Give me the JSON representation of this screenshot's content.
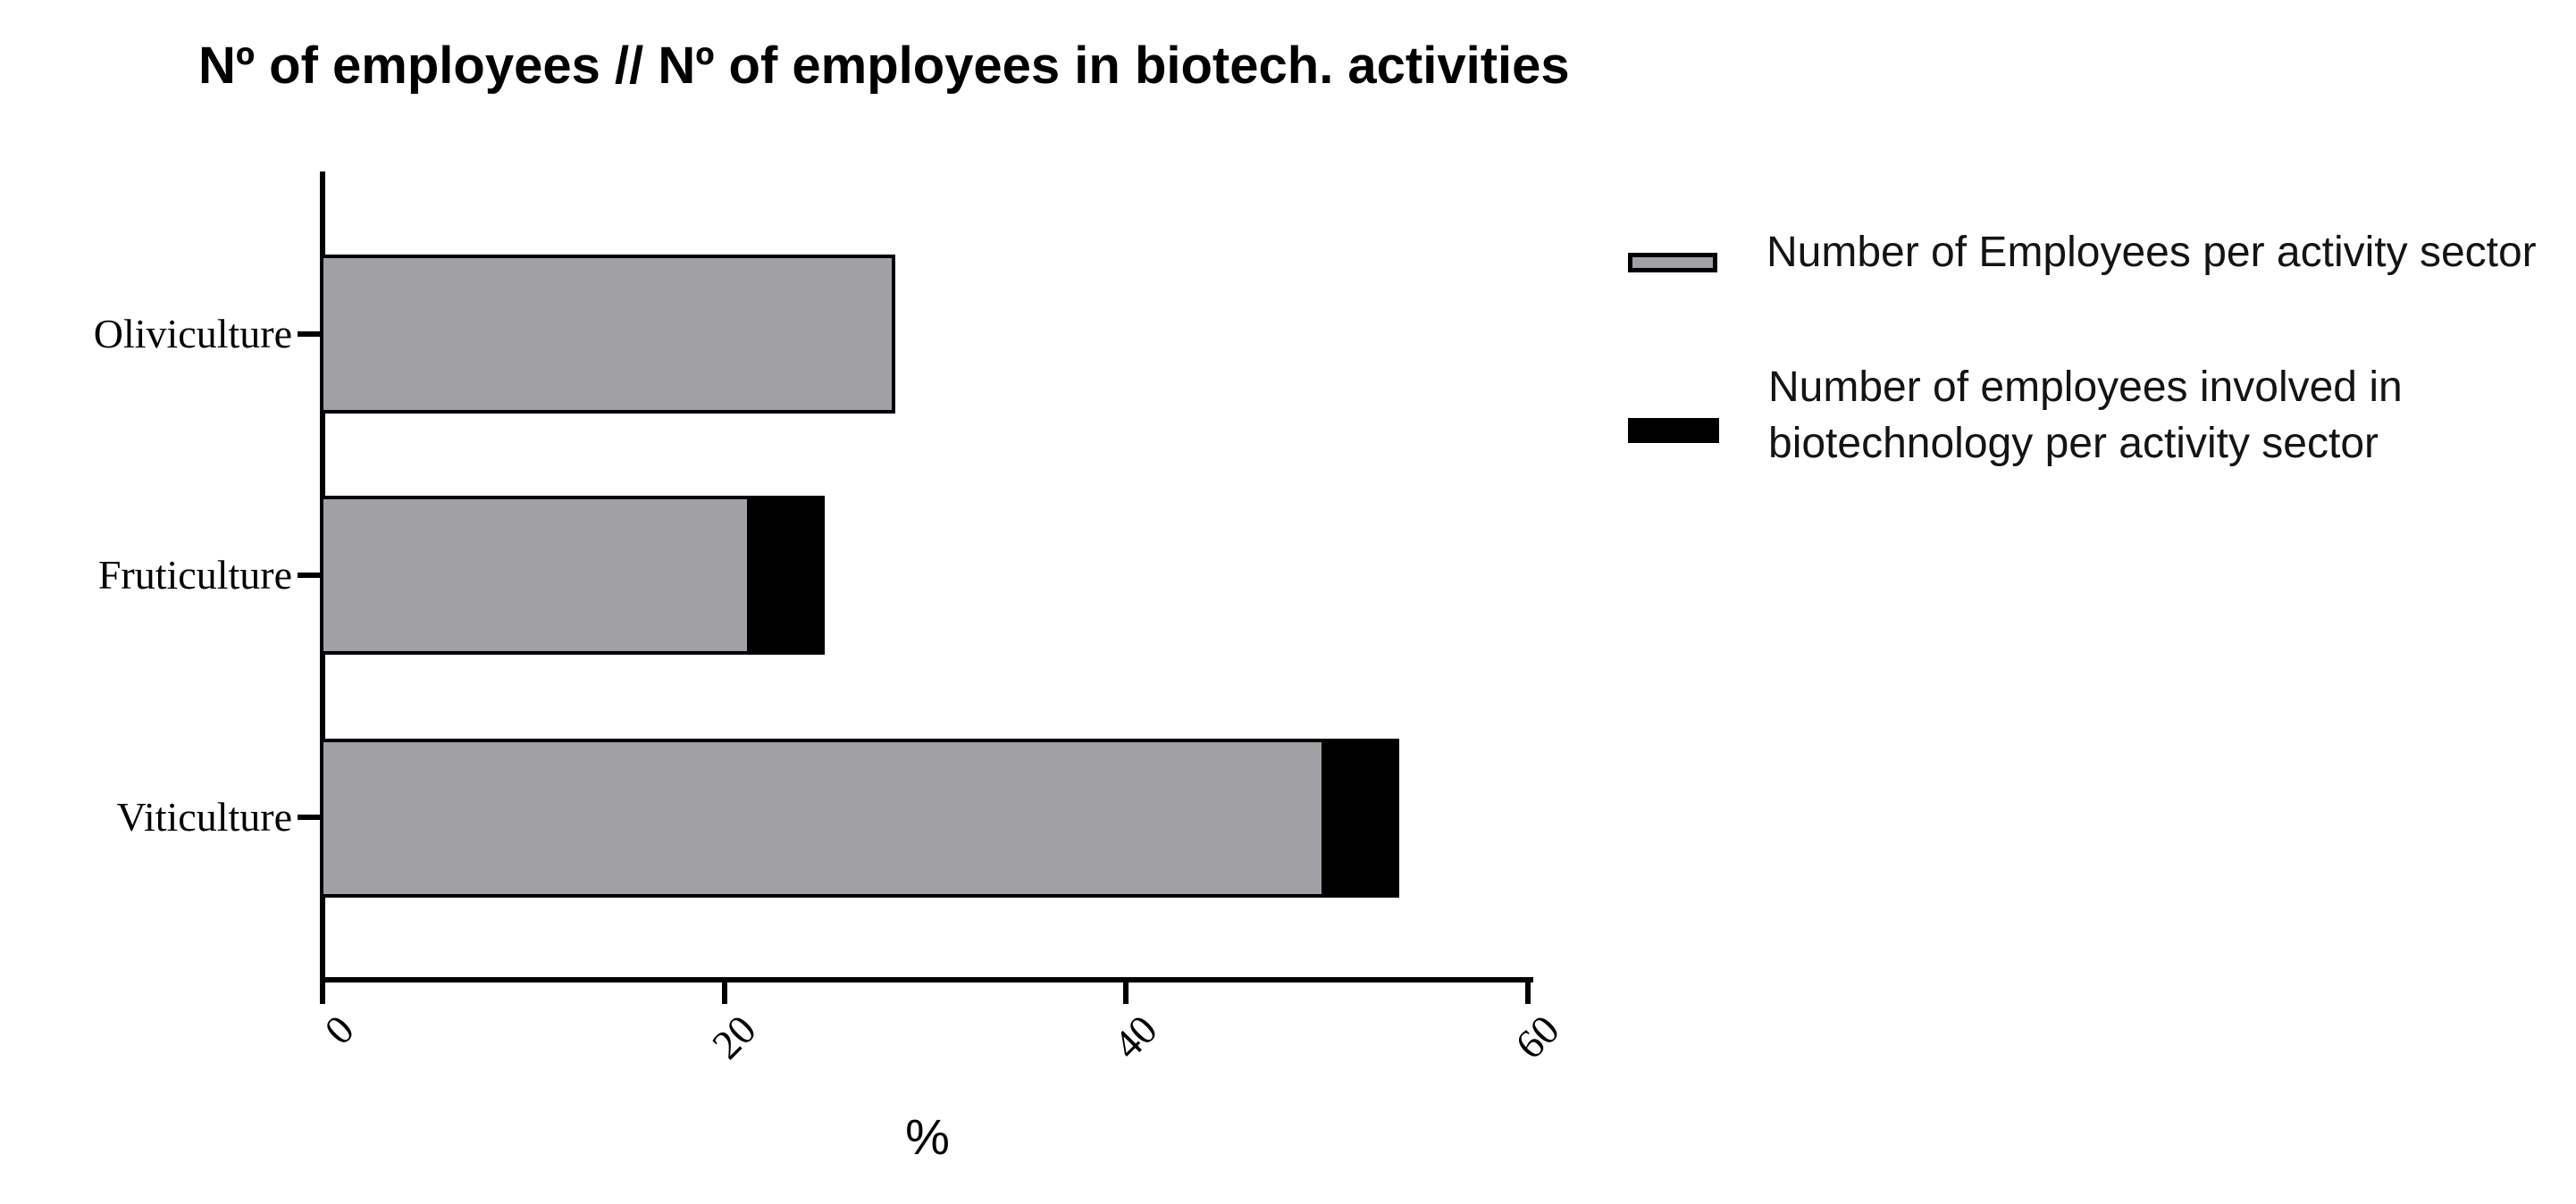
{
  "title": "Nº of employees // Nº of employees in biotech. activities",
  "chart_data": {
    "type": "bar",
    "orientation": "horizontal",
    "title": "Nº of employees // Nº of employees in biotech. activities",
    "categories": [
      "Oliviculture",
      "Fruticulture",
      "Viticulture"
    ],
    "series": [
      {
        "name": "Number of Employees per activity sector",
        "color": "#a1a0a5",
        "values": [
          28.5,
          21.3,
          49.9
        ]
      },
      {
        "name": "Number of employees involved in biotechnology per activity sector",
        "color": "#000000",
        "bar_end_values": [
          28.5,
          25.0,
          53.6
        ],
        "visible_extension": [
          0,
          3.7,
          3.7
        ],
        "note": "black segment drawn from end of gray bar out to bar_end_values; no black segment visible for Oliviculture"
      }
    ],
    "xlabel": "%",
    "xlim": [
      0,
      60
    ],
    "xticks": [
      0,
      20,
      40,
      60
    ],
    "xtick_rotation_deg": -45,
    "grid": false,
    "legend_position": "right",
    "bar_outline_color": "#000000"
  },
  "legend": {
    "items": [
      {
        "label": "Number of Employees per activity sector",
        "swatch_color": "#a1a0a5",
        "swatch_border": "#000000"
      },
      {
        "lines": [
          "Number of employees involved in",
          "biotechnology per activity sector"
        ],
        "swatch_color": "#000000"
      }
    ]
  },
  "colors": {
    "gray_series": "#a1a0a5",
    "black_series": "#000000",
    "axis": "#000000",
    "background": "#ffffff"
  }
}
